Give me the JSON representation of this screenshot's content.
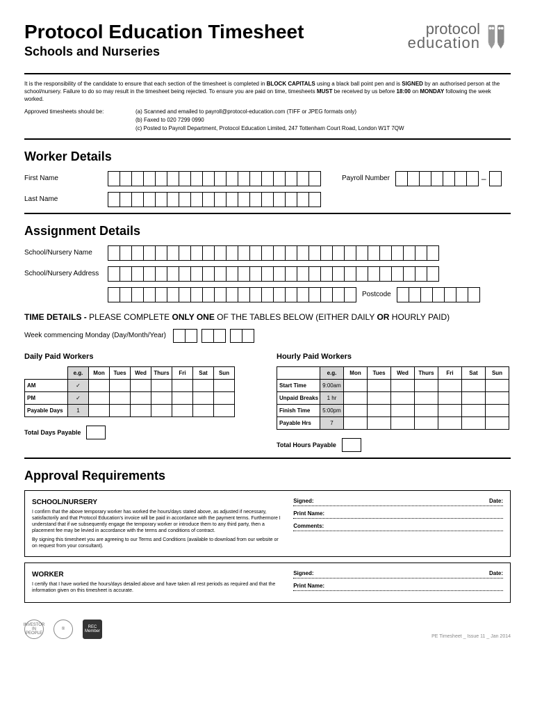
{
  "header": {
    "title": "Protocol Education Timesheet",
    "subtitle": "Schools and Nurseries",
    "logo_line1": "protocol",
    "logo_line2": "education"
  },
  "intro": {
    "text_pre": "It is the responsibility of the candidate to ensure that each section of the timesheet is completed in ",
    "bold1": "BLOCK CAPITALS",
    "text_mid1": " using a black ball point pen and is ",
    "bold2": "SIGNED",
    "text_mid2": " by an authorised person at the school/nursery. Failure to do so may result in the timesheet being rejected. To ensure you are paid on time, timesheets ",
    "bold3": "MUST",
    "text_mid3": " be received by us before ",
    "bold4": "18:00",
    "text_mid4": " on ",
    "bold5": "MONDAY",
    "text_end": " following the week worked."
  },
  "submit": {
    "lead": "Approved timesheets should be:",
    "a": "(a) Scanned and emailed to payroll@protocol-education.com (TIFF or JPEG formats only)",
    "b": "(b) Faxed to 020 7299 0990",
    "c": "(c) Posted to Payroll Department, Protocol Education Limited, 247 Tottenham Court Road, London W1T 7QW"
  },
  "worker": {
    "heading": "Worker Details",
    "first_name_label": "First Name",
    "last_name_label": "Last Name",
    "payroll_label": "Payroll Number",
    "first_name_boxes": 18,
    "last_name_boxes": 18,
    "payroll_main_boxes": 7,
    "payroll_suffix_boxes": 1
  },
  "assignment": {
    "heading": "Assignment Details",
    "school_name_label": "School/Nursery Name",
    "school_addr_label": "School/Nursery Address",
    "postcode_label": "Postcode",
    "name_boxes": 28,
    "addr_boxes": 28,
    "addr2_boxes": 21,
    "postcode_boxes": 7
  },
  "time_details": {
    "prefix": "TIME DETAILS - ",
    "mid1": "PLEASE COMPLETE ",
    "bold1": "ONLY ONE",
    "mid2": " OF THE TABLES BELOW (EITHER DAILY ",
    "bold2": "OR",
    "mid3": " HOURLY PAID)",
    "week_label": "Week commencing Monday (Day/Month/Year)"
  },
  "daily": {
    "heading": "Daily Paid Workers",
    "cols": [
      "e.g.",
      "Mon",
      "Tues",
      "Wed",
      "Thurs",
      "Fri",
      "Sat",
      "Sun"
    ],
    "rows": [
      "AM",
      "PM",
      "Payable Days"
    ],
    "eg_vals": [
      "✓",
      "✓",
      "1"
    ],
    "total_label": "Total Days Payable"
  },
  "hourly": {
    "heading": "Hourly Paid Workers",
    "cols": [
      "e.g.",
      "Mon",
      "Tues",
      "Wed",
      "Thurs",
      "Fri",
      "Sat",
      "Sun"
    ],
    "rows": [
      "Start Time",
      "Unpaid Breaks",
      "Finish Time",
      "Payable Hrs"
    ],
    "eg_vals": [
      "9:00am",
      "1 hr",
      "5:00pm",
      "7"
    ],
    "total_label": "Total Hours Payable"
  },
  "approval": {
    "heading": "Approval Requirements",
    "school_title": "SCHOOL/NURSERY",
    "school_text1": "I confirm that the above temporary worker has worked the hours/days stated above, as adjusted if necessary, satisfactorily and that Protocol Education's invoice will be paid in accordance with the payment terms. Furthermore I understand that if we subsequently engage the temporary worker or introduce them to any third party, then a placement fee may be levied in accordance with the terms and conditions of contract.",
    "school_text2": "By signing this timesheet you are agreeing to our Terms and Conditions (available to download from our website or on request from your consultant).",
    "worker_title": "WORKER",
    "worker_text": "I certify that I have worked the hours/days detailed above and have taken all rest periods as required and that the information given on this timesheet is accurate.",
    "signed_label": "Signed:",
    "date_label": "Date:",
    "print_label": "Print Name:",
    "comments_label": "Comments:"
  },
  "footer": {
    "logo1": "INVESTOR IN PEOPLE",
    "logo2": "®",
    "logo3": "REC Member",
    "version": "PE Timesheet _ Issue 11 _ Jan 2014"
  }
}
